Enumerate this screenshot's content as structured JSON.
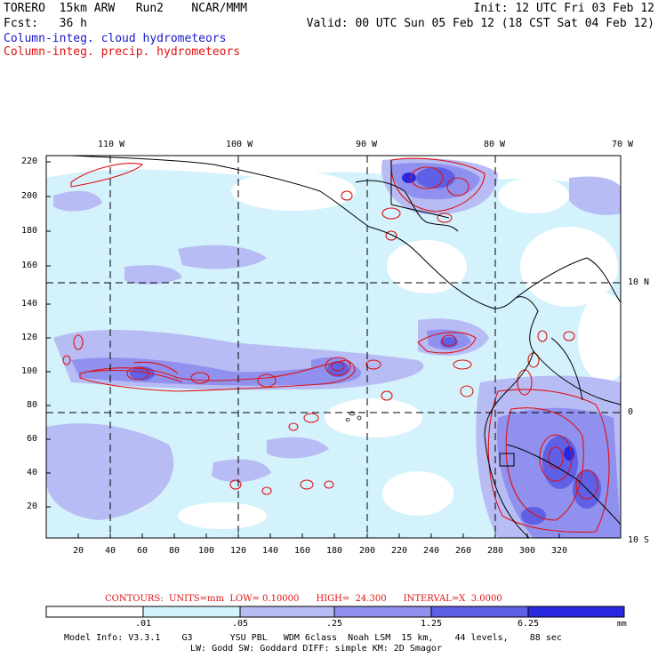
{
  "header": {
    "line1_left": "TORERO  15km ARW   Run2    NCAR/MMM",
    "line1_right": "Init: 12 UTC Fri 03 Feb 12",
    "line2_left": "Fcst:   36 h",
    "line2_right": "Valid: 00 UTC Sun 05 Feb 12 (18 CST Sat 04 Feb 12)",
    "field1": "Column-integ. cloud hydrometeors",
    "field2": "Column-integ. precip. hydrometeors",
    "field1_color": "#1a1acc",
    "field2_color": "#e01010"
  },
  "map": {
    "lon_labels": [
      "110 W",
      "100 W",
      "90 W",
      "80 W",
      "70 W"
    ],
    "lat_labels": [
      "10 N",
      "0",
      "10 S"
    ],
    "y_ticks": [
      "20",
      "40",
      "60",
      "80",
      "100",
      "120",
      "140",
      "160",
      "180",
      "200",
      "220"
    ],
    "x_ticks": [
      "20",
      "40",
      "60",
      "80",
      "100",
      "120",
      "140",
      "160",
      "180",
      "200",
      "220",
      "240",
      "260",
      "280",
      "300",
      "320"
    ]
  },
  "contours_line": {
    "text": "CONTOURS:  UNITS=mm  LOW= 0.10000      HIGH=  24.300      INTERVAL=X  3.0000",
    "color": "#e01010"
  },
  "colorbar": {
    "levels": [
      ".01",
      ".05",
      ".25",
      "1.25",
      "6.25"
    ],
    "unit": "mm",
    "colors": [
      "#ffffff",
      "#d4f2fb",
      "#b8bcf4",
      "#9090ee",
      "#6060e6",
      "#2828e0"
    ]
  },
  "footer": {
    "line1": "Model Info: V3.3.1    G3       YSU PBL   WDM 6class  Noah LSM  15 km,    44 levels,    88 sec",
    "line2": "LW: Godd SW: Goddard DIFF: simple KM: 2D Smagor"
  }
}
